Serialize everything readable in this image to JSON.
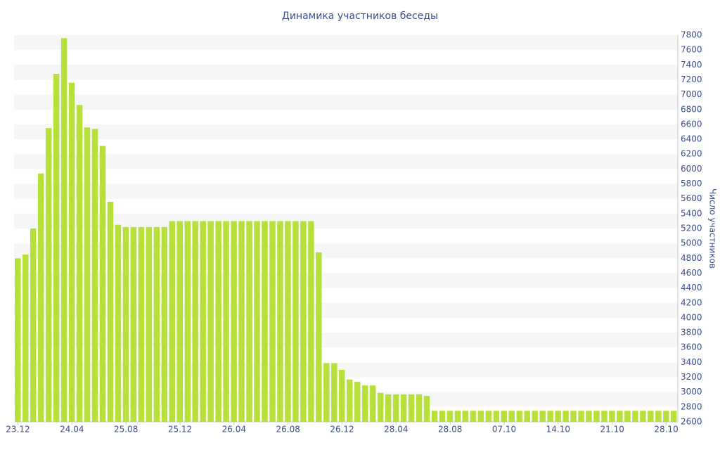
{
  "chart_data": {
    "type": "bar",
    "title": "Динамика участников беседы",
    "y_label": "Число участников",
    "categories": [
      "23.12",
      null,
      null,
      null,
      null,
      null,
      null,
      "24.04",
      null,
      null,
      null,
      null,
      null,
      null,
      "25.08",
      null,
      null,
      null,
      null,
      null,
      null,
      "25.12",
      null,
      null,
      null,
      null,
      null,
      null,
      "26.04",
      null,
      null,
      null,
      null,
      null,
      null,
      "26.08",
      null,
      null,
      null,
      null,
      null,
      null,
      "26.12",
      null,
      null,
      null,
      null,
      null,
      null,
      "28.04",
      null,
      null,
      null,
      null,
      null,
      null,
      "28.08",
      null,
      null,
      null,
      null,
      null,
      null,
      "07.10",
      null,
      null,
      null,
      null,
      null,
      null,
      "14.10",
      null,
      null,
      null,
      null,
      null,
      null,
      "21.10",
      null,
      null,
      null,
      null,
      null,
      null,
      "28.10",
      null
    ],
    "values": [
      4800,
      4850,
      5200,
      5940,
      6550,
      7280,
      7760,
      7160,
      6860,
      6560,
      6540,
      6310,
      5560,
      5250,
      5220,
      5220,
      5220,
      5220,
      5220,
      5220,
      5300,
      5300,
      5300,
      5300,
      5300,
      5300,
      5300,
      5300,
      5300,
      5300,
      5300,
      5300,
      5300,
      5300,
      5300,
      5300,
      5300,
      5300,
      5300,
      4880,
      3390,
      3390,
      3300,
      3170,
      3140,
      3090,
      3090,
      2990,
      2970,
      2970,
      2970,
      2970,
      2970,
      2950,
      2750,
      2750,
      2750,
      2750,
      2750,
      2750,
      2750,
      2750,
      2750,
      2750,
      2750,
      2750,
      2750,
      2750,
      2750,
      2750,
      2750,
      2750,
      2750,
      2750,
      2750,
      2750,
      2750,
      2750,
      2750,
      2750,
      2750,
      2750,
      2750,
      2750,
      2750,
      2750
    ],
    "color": "#b8e03a",
    "ylim": [
      2600,
      7800
    ],
    "yticks": [
      2600,
      2800,
      3000,
      3200,
      3400,
      3600,
      3800,
      4000,
      4200,
      4400,
      4600,
      4800,
      5000,
      5200,
      5400,
      5600,
      5800,
      6000,
      6200,
      6400,
      6600,
      6800,
      7000,
      7200,
      7400,
      7600,
      7800
    ],
    "y_axis_side": "right",
    "grid": "bands"
  }
}
